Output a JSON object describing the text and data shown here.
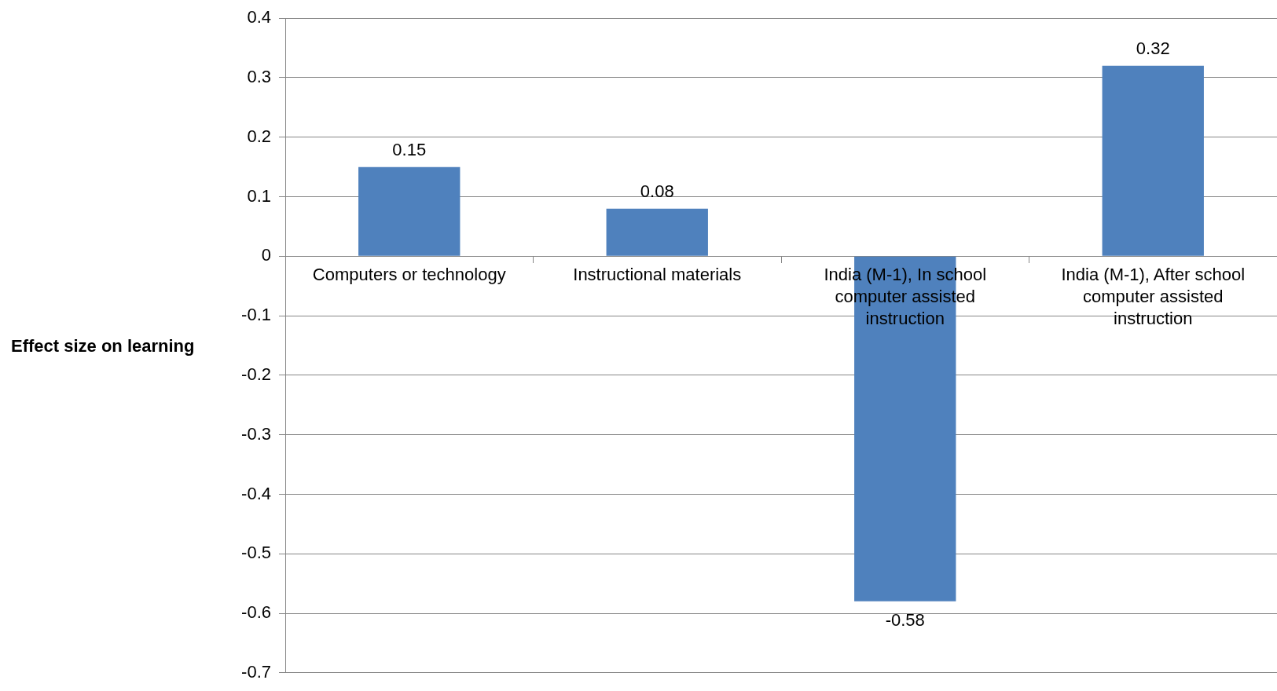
{
  "chart_data": {
    "type": "bar",
    "ylabel": "Effect size on learning",
    "categories": [
      "Computers or technology",
      "Instructional materials",
      "India (M-1), In school computer assisted instruction",
      "India (M-1), After school computer assisted instruction"
    ],
    "values": [
      0.15,
      0.08,
      -0.58,
      0.32
    ],
    "color": "#4f81bd",
    "ylim": [
      -0.7,
      0.4
    ],
    "yticks": [
      -0.7,
      -0.6,
      -0.5,
      -0.4,
      -0.3,
      -0.2,
      -0.1,
      0,
      0.1,
      0.2,
      0.3,
      0.4
    ],
    "grid": "y",
    "data_labels": true,
    "legend": false
  }
}
